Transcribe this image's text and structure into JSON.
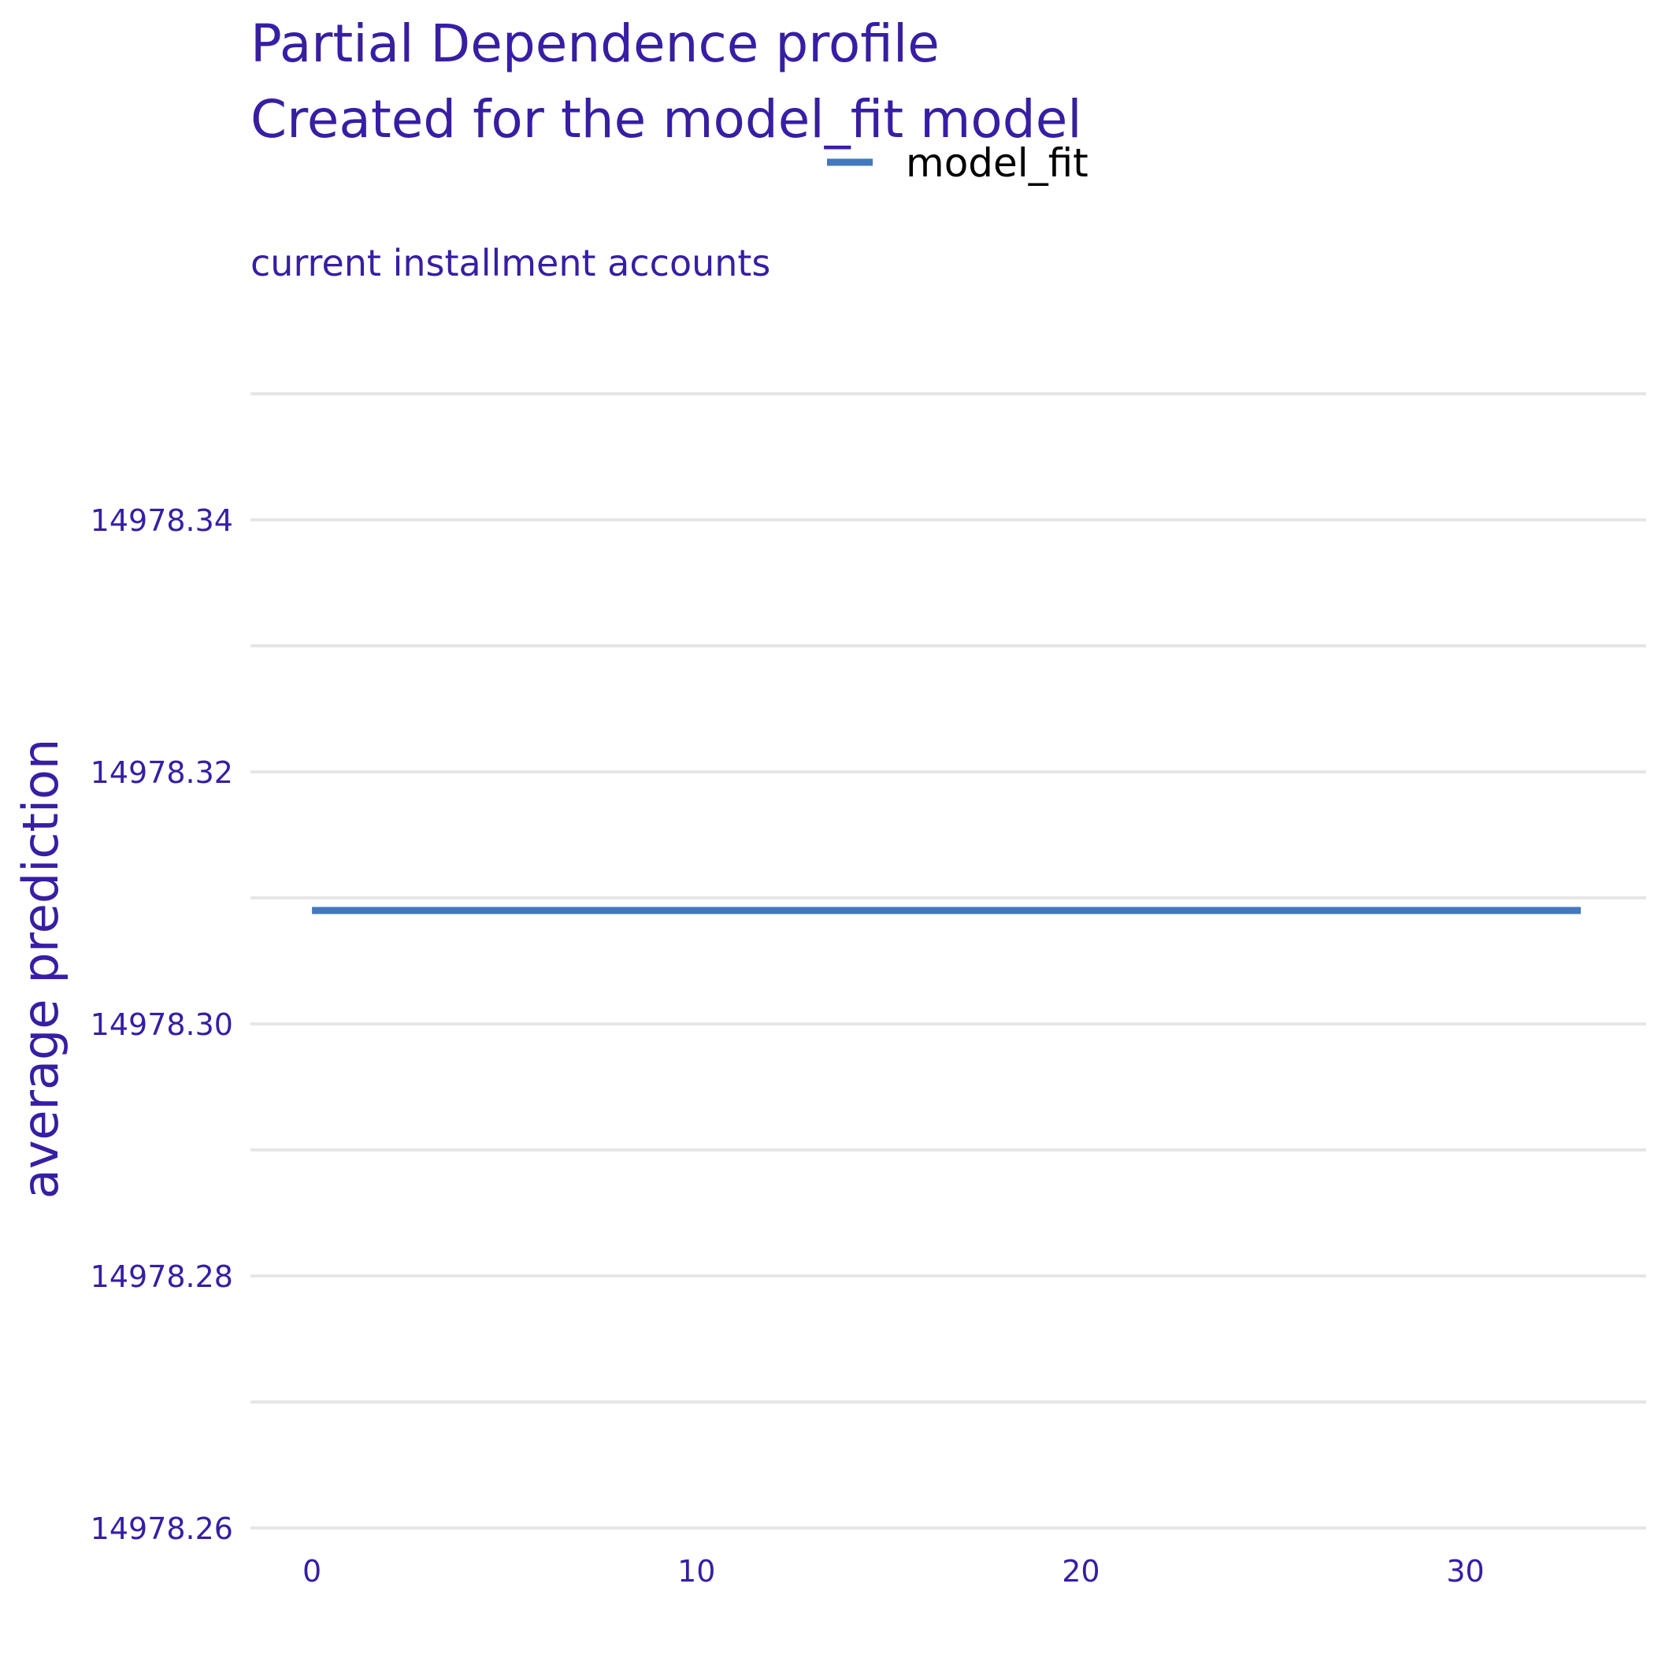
{
  "chart_data": {
    "type": "line",
    "title": "Partial Dependence profile",
    "subtitle": "Created for the model_fit model",
    "panel_label": "current installment accounts",
    "xlabel": "",
    "ylabel": "average prediction",
    "xlim": [
      -1.6,
      34.7
    ],
    "ylim": [
      14978.26,
      14978.35
    ],
    "x_ticks": [
      "0",
      "10",
      "20",
      "30"
    ],
    "y_ticks": [
      "14978.26",
      "14978.28",
      "14978.30",
      "14978.32",
      "14978.34"
    ],
    "grid": true,
    "legend_position": "top",
    "colors": {
      "title": "#371ea3",
      "line": "#4378bf",
      "grid": "#e6e6e6"
    },
    "series": [
      {
        "name": "model_fit",
        "color": "#4378bf",
        "x": [
          0,
          33
        ],
        "y": [
          14978.309,
          14978.309
        ]
      }
    ]
  }
}
